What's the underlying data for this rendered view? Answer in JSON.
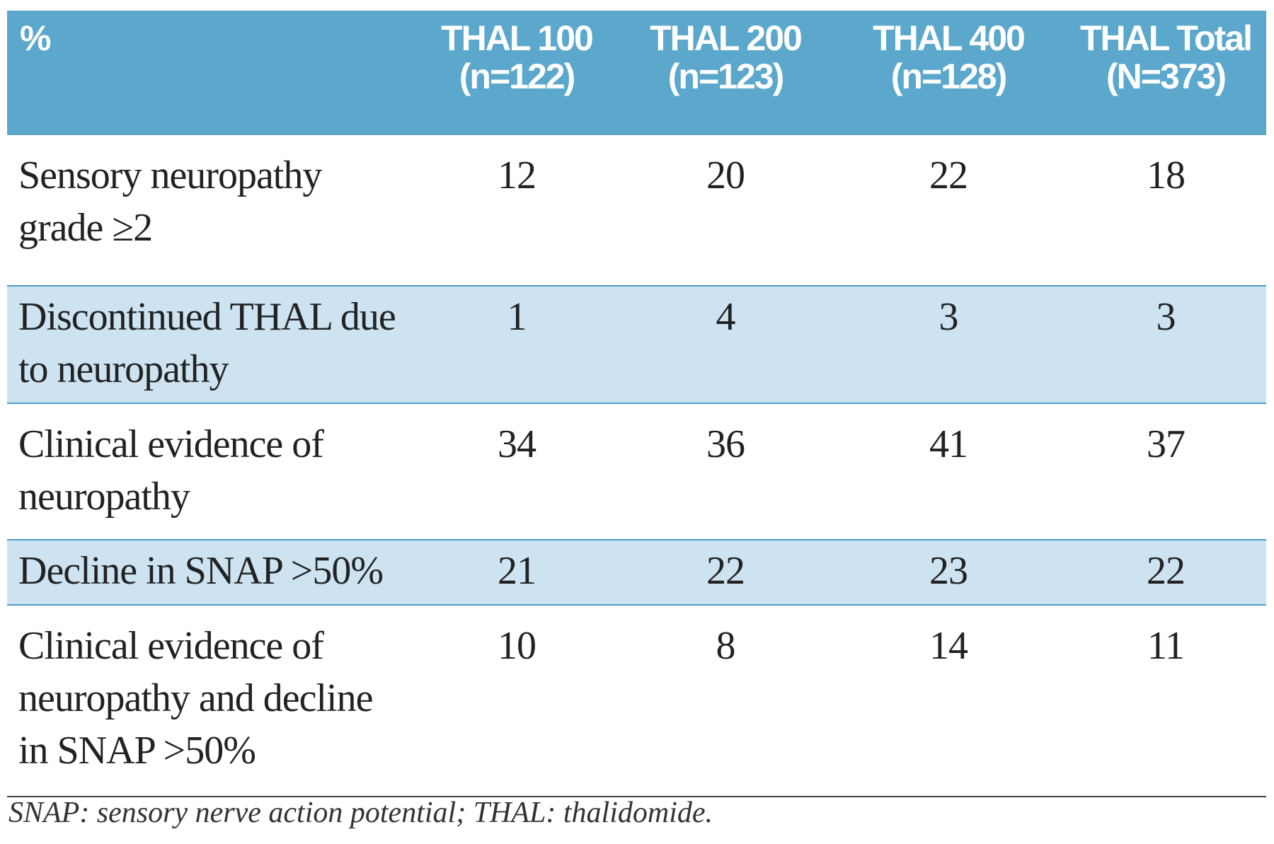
{
  "table": {
    "corner": "%",
    "columns": [
      {
        "name": "THAL 100",
        "n": "(n=122)"
      },
      {
        "name": "THAL 200",
        "n": "(n=123)"
      },
      {
        "name": "THAL 400",
        "n": "(n=128)"
      },
      {
        "name": "THAL Total",
        "n": "(N=373)"
      }
    ],
    "rows": [
      {
        "label": "Sensory neuropathy grade ≥2",
        "values": [
          12,
          20,
          22,
          18
        ]
      },
      {
        "label": "Discontinued THAL due to neuropathy",
        "values": [
          1,
          4,
          3,
          3
        ]
      },
      {
        "label": "Clinical evidence of neuropathy",
        "values": [
          34,
          36,
          41,
          37
        ]
      },
      {
        "label": "Decline in SNAP >50%",
        "values": [
          21,
          22,
          23,
          22
        ]
      },
      {
        "label": "Clinical evidence of neuropathy and decline in SNAP >50%",
        "values": [
          10,
          8,
          14,
          11
        ]
      }
    ]
  },
  "footnote": "SNAP: sensory nerve action potential; THAL: thalidomide."
}
